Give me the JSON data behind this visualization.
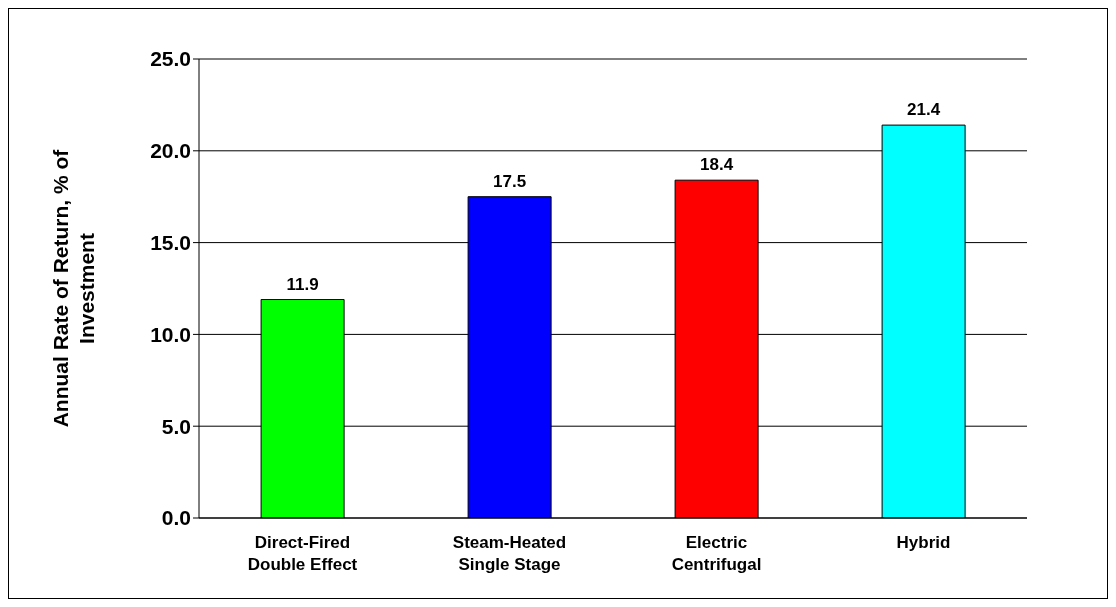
{
  "chart_data": {
    "type": "bar",
    "ylabel": "Annual Rate of Return, % of Investment",
    "categories": [
      "Direct-Fired Double Effect",
      "Steam-Heated Single Stage",
      "Electric Centrifugal",
      "Hybrid"
    ],
    "values": [
      11.9,
      17.5,
      18.4,
      21.4
    ],
    "colors": [
      "#00ff00",
      "#0000ff",
      "#ff0000",
      "#00ffff"
    ],
    "ylim": [
      0,
      25
    ],
    "yticks": [
      {
        "value": 0,
        "label": "0.0"
      },
      {
        "value": 5,
        "label": "5.0"
      },
      {
        "value": 10,
        "label": "10.0"
      },
      {
        "value": 15,
        "label": "15.0"
      },
      {
        "value": 20,
        "label": "20.0"
      },
      {
        "value": 25,
        "label": "25.0"
      }
    ],
    "grid": "y",
    "data_labels": true
  }
}
